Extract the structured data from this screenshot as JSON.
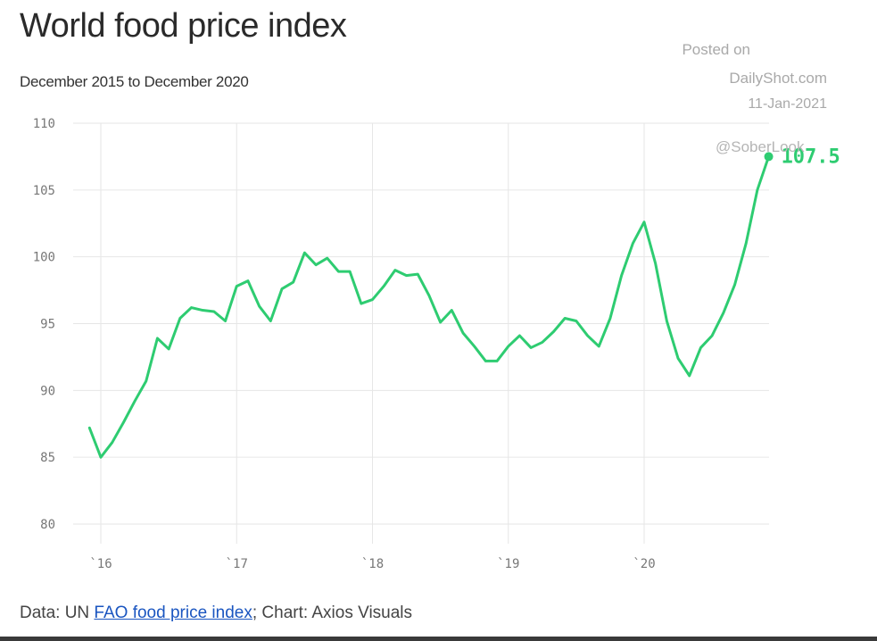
{
  "header": {
    "title": "World food price index",
    "subtitle": "December 2015 to December 2020"
  },
  "watermark": {
    "line1": "Posted on",
    "line2": "DailyShot.com",
    "line3": "11-Jan-2021",
    "handle": "@SoberLook"
  },
  "footer": {
    "prefix": "Data: UN ",
    "link_text": "FAO food price index",
    "suffix": "; Chart: Axios Visuals"
  },
  "colors": {
    "line": "#2ecc71",
    "grid": "#e6e6e6",
    "tick_text": "#777777"
  },
  "chart_data": {
    "type": "line",
    "ylim": [
      80,
      110
    ],
    "yticks": [
      80,
      85,
      90,
      95,
      100,
      105,
      110
    ],
    "ytick_labels": [
      "80",
      "85",
      "90",
      "95",
      "100",
      "105",
      "110"
    ],
    "xticks": [
      2016,
      2017,
      2018,
      2019,
      2020
    ],
    "xtick_labels": [
      "`16",
      "`17",
      "`18",
      "`19",
      "`20"
    ],
    "grid": true,
    "end_label": "107.5",
    "series": [
      {
        "values": [
          87.2,
          85.0,
          86.1,
          87.6,
          89.2,
          90.7,
          93.9,
          93.1,
          95.4,
          96.2,
          96.0,
          95.9,
          95.2,
          97.8,
          98.2,
          96.3,
          95.2,
          97.6,
          98.1,
          100.3,
          99.4,
          99.9,
          98.9,
          98.9,
          96.5,
          96.8,
          97.8,
          99.0,
          98.6,
          98.7,
          97.1,
          95.1,
          96.0,
          94.3,
          93.3,
          92.2,
          92.2,
          93.3,
          94.1,
          93.2,
          93.6,
          94.4,
          95.4,
          95.2,
          94.1,
          93.3,
          95.4,
          98.6,
          101.0,
          102.6,
          99.5,
          95.2,
          92.4,
          91.1,
          93.2,
          94.1,
          95.8,
          97.9,
          101.0,
          105.0,
          107.5
        ],
        "x_start": "2015-12",
        "x_end": "2020-12"
      }
    ]
  }
}
